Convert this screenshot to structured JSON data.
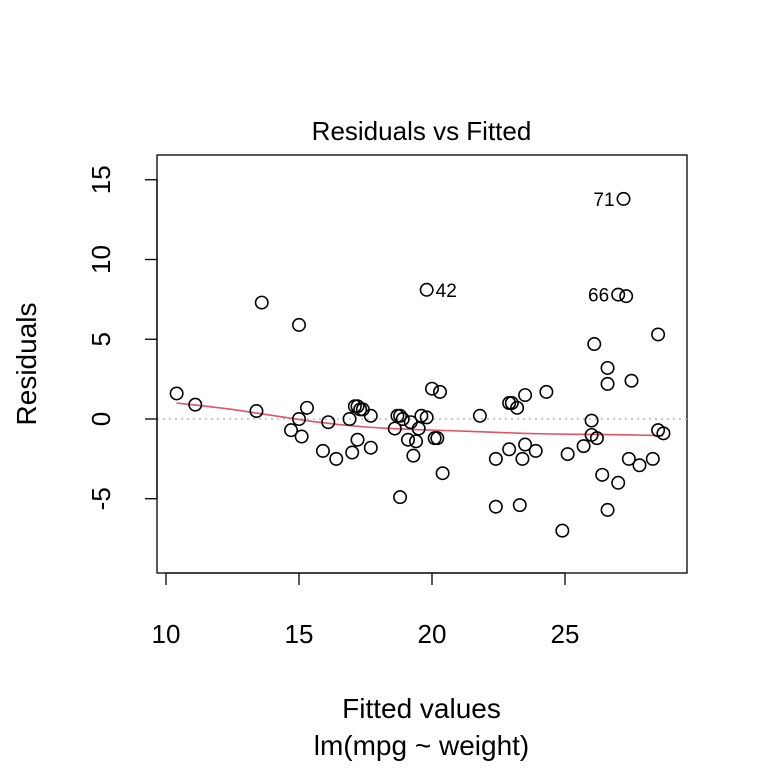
{
  "chart_data": {
    "type": "scatter",
    "title": "Residuals vs Fitted",
    "xlabel": "Fitted values",
    "subtitle": "lm(mpg ~ weight)",
    "ylabel": "Residuals",
    "xlim": [
      10,
      29.5
    ],
    "ylim": [
      -9.5,
      16.5
    ],
    "x_ticks": [
      10,
      15,
      20,
      25
    ],
    "y_ticks": [
      -5,
      0,
      5,
      10,
      15
    ],
    "reference_line_y": 0,
    "points": [
      {
        "x": 10.4,
        "y": 1.6
      },
      {
        "x": 11.1,
        "y": 0.9
      },
      {
        "x": 13.4,
        "y": 0.5
      },
      {
        "x": 13.6,
        "y": 7.3
      },
      {
        "x": 14.7,
        "y": -0.7
      },
      {
        "x": 15.0,
        "y": 0.0
      },
      {
        "x": 15.1,
        "y": -1.1
      },
      {
        "x": 15.0,
        "y": 5.9
      },
      {
        "x": 15.3,
        "y": 0.7
      },
      {
        "x": 15.9,
        "y": -2.0
      },
      {
        "x": 16.1,
        "y": -0.2
      },
      {
        "x": 16.4,
        "y": -2.5
      },
      {
        "x": 16.9,
        "y": 0.0
      },
      {
        "x": 17.0,
        "y": -2.1
      },
      {
        "x": 17.1,
        "y": 0.8
      },
      {
        "x": 17.2,
        "y": 0.8
      },
      {
        "x": 17.2,
        "y": -1.3
      },
      {
        "x": 17.3,
        "y": 0.6
      },
      {
        "x": 17.4,
        "y": 0.6
      },
      {
        "x": 17.7,
        "y": 0.2
      },
      {
        "x": 17.7,
        "y": -1.8
      },
      {
        "x": 18.6,
        "y": -0.6
      },
      {
        "x": 18.7,
        "y": 0.2
      },
      {
        "x": 18.8,
        "y": 0.2
      },
      {
        "x": 18.8,
        "y": -4.9
      },
      {
        "x": 18.9,
        "y": 0.0
      },
      {
        "x": 19.1,
        "y": -1.3
      },
      {
        "x": 19.2,
        "y": -0.2
      },
      {
        "x": 19.3,
        "y": -2.3
      },
      {
        "x": 19.4,
        "y": -1.4
      },
      {
        "x": 19.5,
        "y": -0.6
      },
      {
        "x": 19.6,
        "y": 0.2
      },
      {
        "x": 19.8,
        "y": 0.1
      },
      {
        "x": 19.8,
        "y": 8.1
      },
      {
        "x": 20.0,
        "y": 1.9
      },
      {
        "x": 20.1,
        "y": -1.2
      },
      {
        "x": 20.2,
        "y": -1.2
      },
      {
        "x": 20.3,
        "y": 1.7
      },
      {
        "x": 20.4,
        "y": -3.4
      },
      {
        "x": 21.8,
        "y": 0.2
      },
      {
        "x": 22.4,
        "y": -2.5
      },
      {
        "x": 22.4,
        "y": -5.5
      },
      {
        "x": 22.9,
        "y": 1.0
      },
      {
        "x": 22.9,
        "y": -1.9
      },
      {
        "x": 23.0,
        "y": 1.0
      },
      {
        "x": 23.2,
        "y": 0.7
      },
      {
        "x": 23.3,
        "y": -5.4
      },
      {
        "x": 23.4,
        "y": -2.5
      },
      {
        "x": 23.5,
        "y": -1.6
      },
      {
        "x": 23.5,
        "y": 1.5
      },
      {
        "x": 23.9,
        "y": -2.0
      },
      {
        "x": 24.3,
        "y": 1.7
      },
      {
        "x": 24.9,
        "y": -7.0
      },
      {
        "x": 25.1,
        "y": -2.2
      },
      {
        "x": 25.7,
        "y": -1.7
      },
      {
        "x": 26.0,
        "y": -1.0
      },
      {
        "x": 26.0,
        "y": -0.1
      },
      {
        "x": 26.1,
        "y": 4.7
      },
      {
        "x": 26.2,
        "y": -1.2
      },
      {
        "x": 26.4,
        "y": -3.5
      },
      {
        "x": 26.6,
        "y": 3.2
      },
      {
        "x": 26.6,
        "y": 2.2
      },
      {
        "x": 26.6,
        "y": -5.7
      },
      {
        "x": 27.0,
        "y": -4.0
      },
      {
        "x": 27.0,
        "y": 7.8
      },
      {
        "x": 27.2,
        "y": 13.8,
        "label": "71"
      },
      {
        "x": 27.3,
        "y": 7.7
      },
      {
        "x": 27.4,
        "y": -2.5
      },
      {
        "x": 27.5,
        "y": 2.4
      },
      {
        "x": 27.8,
        "y": -2.9
      },
      {
        "x": 28.3,
        "y": -2.5
      },
      {
        "x": 28.5,
        "y": 5.3
      },
      {
        "x": 28.5,
        "y": -0.7
      },
      {
        "x": 28.7,
        "y": -0.9
      }
    ],
    "point_labels": [
      {
        "text": "71",
        "x": 27.2,
        "y": 13.8,
        "side": "left"
      },
      {
        "text": "42",
        "x": 19.8,
        "y": 8.1,
        "side": "right"
      },
      {
        "text": "66",
        "x": 27.0,
        "y": 7.8,
        "side": "left"
      }
    ],
    "smooth_line": {
      "color": "#DF536B",
      "x": [
        10.4,
        11.5,
        12.5,
        13.5,
        14.5,
        15.5,
        16.5,
        17.5,
        18.5,
        19.5,
        20.5,
        21.5,
        22.5,
        23.5,
        24.5,
        25.5,
        26.5,
        27.5,
        28.7
      ],
      "y": [
        1.0,
        0.8,
        0.6,
        0.35,
        0.1,
        -0.15,
        -0.35,
        -0.5,
        -0.6,
        -0.67,
        -0.72,
        -0.78,
        -0.84,
        -0.9,
        -0.94,
        -0.96,
        -0.98,
        -1.0,
        -1.05
      ]
    }
  }
}
